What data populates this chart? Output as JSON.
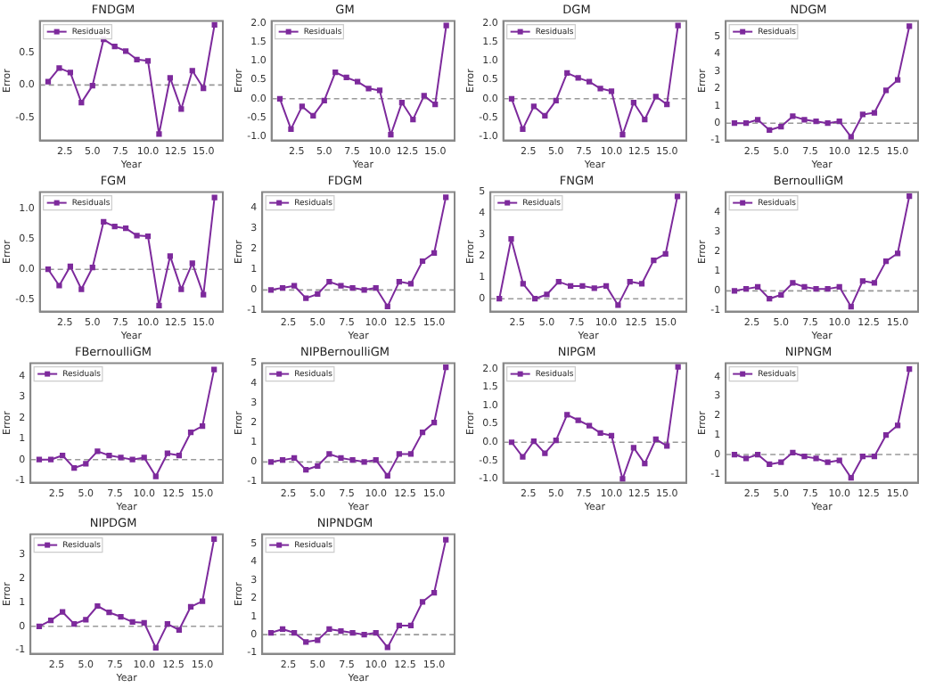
{
  "chart_data": [
    {
      "type": "line",
      "title": "FNDGM",
      "xlabel": "Year",
      "ylabel": "Error",
      "x": [
        1,
        2,
        3,
        4,
        5,
        6,
        7,
        8,
        9,
        10,
        11,
        12,
        13,
        14,
        15,
        16
      ],
      "series": [
        {
          "name": "Residuals",
          "color": "#7d2a9c",
          "values": [
            0.05,
            0.26,
            0.19,
            -0.27,
            -0.01,
            0.7,
            0.59,
            0.52,
            0.39,
            0.37,
            -0.75,
            0.11,
            -0.37,
            0.22,
            -0.05,
            0.92
          ]
        }
      ],
      "xlim": [
        0.25,
        16.75
      ],
      "xticks": [
        2.5,
        {
          "value": 5,
          "label": "5.0"
        },
        7.5,
        {
          "value": 10,
          "label": "10.0"
        },
        12.5,
        {
          "value": 15,
          "label": "15.0"
        }
      ],
      "ylim": [
        -0.85,
        0.98
      ],
      "yticks": [
        -0.5,
        {
          "value": 0,
          "label": "0.0"
        },
        0.5
      ],
      "marker": "square",
      "legend": "top left",
      "ref_lines": [
        {
          "axis": "y",
          "value": 0,
          "color": "#999999",
          "line_style": "dashed"
        }
      ]
    },
    {
      "type": "line",
      "title": "GM",
      "xlabel": "Year",
      "ylabel": "Error",
      "x": [
        1,
        2,
        3,
        4,
        5,
        6,
        7,
        8,
        9,
        10,
        11,
        12,
        13,
        14,
        15,
        16
      ],
      "series": [
        {
          "name": "Residuals",
          "color": "#7d2a9c",
          "values": [
            0,
            -0.8,
            -0.2,
            -0.45,
            -0.05,
            0.7,
            0.56,
            0.45,
            0.27,
            0.22,
            -0.95,
            -0.1,
            -0.55,
            0.08,
            -0.15,
            1.93
          ]
        }
      ],
      "xlim": [
        0.25,
        16.75
      ],
      "xticks": [
        2.5,
        {
          "value": 5,
          "label": "5.0"
        },
        7.5,
        {
          "value": 10,
          "label": "10.0"
        },
        12.5,
        {
          "value": 15,
          "label": "15.0"
        }
      ],
      "ylim": [
        -1.1,
        2.05
      ],
      "yticks": [
        {
          "value": -1,
          "label": "-1.0"
        },
        -0.5,
        {
          "value": 0,
          "label": "0.0"
        },
        0.5,
        {
          "value": 1,
          "label": "1.0"
        },
        1.5,
        {
          "value": 2,
          "label": "2.0"
        }
      ],
      "marker": "square",
      "legend": "top left",
      "ref_lines": [
        {
          "axis": "y",
          "value": 0,
          "color": "#999999",
          "line_style": "dashed"
        }
      ]
    },
    {
      "type": "line",
      "title": "DGM",
      "xlabel": "Year",
      "ylabel": "Error",
      "x": [
        1,
        2,
        3,
        4,
        5,
        6,
        7,
        8,
        9,
        10,
        11,
        12,
        13,
        14,
        15,
        16
      ],
      "series": [
        {
          "name": "Residuals",
          "color": "#7d2a9c",
          "values": [
            0,
            -0.8,
            -0.2,
            -0.45,
            -0.05,
            0.68,
            0.55,
            0.45,
            0.27,
            0.2,
            -0.95,
            -0.1,
            -0.55,
            0.06,
            -0.15,
            1.93
          ]
        }
      ],
      "xlim": [
        0.25,
        16.75
      ],
      "xticks": [
        2.5,
        {
          "value": 5,
          "label": "5.0"
        },
        7.5,
        {
          "value": 10,
          "label": "10.0"
        },
        12.5,
        {
          "value": 15,
          "label": "15.0"
        }
      ],
      "ylim": [
        -1.1,
        2.05
      ],
      "yticks": [
        {
          "value": -1,
          "label": "-1.0"
        },
        -0.5,
        {
          "value": 0,
          "label": "0.0"
        },
        0.5,
        {
          "value": 1,
          "label": "1.0"
        },
        1.5,
        {
          "value": 2,
          "label": "2.0"
        }
      ],
      "marker": "square",
      "legend": "top left",
      "ref_lines": [
        {
          "axis": "y",
          "value": 0,
          "color": "#999999",
          "line_style": "dashed"
        }
      ]
    },
    {
      "type": "line",
      "title": "NDGM",
      "xlabel": "Year",
      "ylabel": "Error",
      "x": [
        1,
        2,
        3,
        4,
        5,
        6,
        7,
        8,
        9,
        10,
        11,
        12,
        13,
        14,
        15,
        16
      ],
      "series": [
        {
          "name": "Residuals",
          "color": "#7d2a9c",
          "values": [
            0,
            0,
            0.2,
            -0.4,
            -0.2,
            0.4,
            0.2,
            0.1,
            0,
            0.1,
            -0.8,
            0.5,
            0.6,
            1.9,
            2.5,
            5.6
          ]
        }
      ],
      "xlim": [
        0.25,
        16.75
      ],
      "xticks": [
        2.5,
        {
          "value": 5,
          "label": "5.0"
        },
        7.5,
        {
          "value": 10,
          "label": "10.0"
        },
        12.5,
        {
          "value": 15,
          "label": "15.0"
        }
      ],
      "ylim": [
        -1,
        5.9
      ],
      "yticks": [
        -1,
        0,
        1,
        2,
        3,
        4,
        5
      ],
      "marker": "square",
      "legend": "top left",
      "ref_lines": [
        {
          "axis": "y",
          "value": 0,
          "color": "#999999",
          "line_style": "dashed"
        }
      ]
    },
    {
      "type": "line",
      "title": "FGM",
      "xlabel": "Year",
      "ylabel": "Error",
      "x": [
        1,
        2,
        3,
        4,
        5,
        6,
        7,
        8,
        9,
        10,
        11,
        12,
        13,
        14,
        15,
        16
      ],
      "series": [
        {
          "name": "Residuals",
          "color": "#7d2a9c",
          "values": [
            0,
            -0.27,
            0.05,
            -0.33,
            0.03,
            0.79,
            0.71,
            0.68,
            0.56,
            0.55,
            -0.6,
            0.22,
            -0.33,
            0.1,
            -0.42,
            1.19
          ]
        }
      ],
      "xlim": [
        0.25,
        16.75
      ],
      "xticks": [
        2.5,
        {
          "value": 5,
          "label": "5.0"
        },
        7.5,
        {
          "value": 10,
          "label": "10.0"
        },
        12.5,
        {
          "value": 15,
          "label": "15.0"
        }
      ],
      "ylim": [
        -0.7,
        1.28
      ],
      "yticks": [
        -0.5,
        {
          "value": 0,
          "label": "0.0"
        },
        0.5,
        {
          "value": 1,
          "label": "1.0"
        }
      ],
      "marker": "square",
      "legend": "top left",
      "ref_lines": [
        {
          "axis": "y",
          "value": 0,
          "color": "#999999",
          "line_style": "dashed"
        }
      ]
    },
    {
      "type": "line",
      "title": "FDGM",
      "xlabel": "Year",
      "ylabel": "Error",
      "x": [
        1,
        2,
        3,
        4,
        5,
        6,
        7,
        8,
        9,
        10,
        11,
        12,
        13,
        14,
        15,
        16
      ],
      "series": [
        {
          "name": "Residuals",
          "color": "#7d2a9c",
          "values": [
            0,
            0.1,
            0.2,
            -0.4,
            -0.2,
            0.4,
            0.2,
            0.1,
            0,
            0.1,
            -0.8,
            0.4,
            0.3,
            1.4,
            1.8,
            4.5
          ]
        }
      ],
      "xlim": [
        0.25,
        16.75
      ],
      "xticks": [
        2.5,
        {
          "value": 5,
          "label": "5.0"
        },
        7.5,
        {
          "value": 10,
          "label": "10.0"
        },
        12.5,
        {
          "value": 15,
          "label": "15.0"
        }
      ],
      "ylim": [
        -1.05,
        4.75
      ],
      "yticks": [
        -1,
        0,
        1,
        2,
        3,
        4
      ],
      "marker": "square",
      "legend": "top left",
      "ref_lines": [
        {
          "axis": "y",
          "value": 0,
          "color": "#999999",
          "line_style": "dashed"
        }
      ]
    },
    {
      "type": "line",
      "title": "FNGM",
      "xlabel": "Year",
      "ylabel": "Error",
      "x": [
        1,
        2,
        3,
        4,
        5,
        6,
        7,
        8,
        9,
        10,
        11,
        12,
        13,
        14,
        15,
        16
      ],
      "series": [
        {
          "name": "Residuals",
          "color": "#7d2a9c",
          "values": [
            0,
            2.8,
            0.7,
            0,
            0.2,
            0.8,
            0.6,
            0.6,
            0.5,
            0.6,
            -0.3,
            0.8,
            0.7,
            1.8,
            2.1,
            4.8
          ]
        }
      ],
      "xlim": [
        0.25,
        16.75
      ],
      "xticks": [
        2.5,
        {
          "value": 5,
          "label": "5.0"
        },
        7.5,
        {
          "value": 10,
          "label": "10.0"
        },
        12.5,
        {
          "value": 15,
          "label": "15.0"
        }
      ],
      "ylim": [
        -0.6,
        5
      ],
      "yticks": [
        0,
        1,
        2,
        3,
        4,
        5
      ],
      "marker": "square",
      "legend": "top left",
      "ref_lines": [
        {
          "axis": "y",
          "value": 0,
          "color": "#999999",
          "line_style": "dashed"
        }
      ]
    },
    {
      "type": "line",
      "title": "BernoulliGM",
      "xlabel": "Year",
      "ylabel": "Error",
      "x": [
        1,
        2,
        3,
        4,
        5,
        6,
        7,
        8,
        9,
        10,
        11,
        12,
        13,
        14,
        15,
        16
      ],
      "series": [
        {
          "name": "Residuals",
          "color": "#7d2a9c",
          "values": [
            0,
            0.1,
            0.2,
            -0.4,
            -0.2,
            0.4,
            0.2,
            0.1,
            0.1,
            0.2,
            -0.8,
            0.5,
            0.4,
            1.5,
            1.9,
            4.8
          ]
        }
      ],
      "xlim": [
        0.25,
        16.75
      ],
      "xticks": [
        2.5,
        {
          "value": 5,
          "label": "5.0"
        },
        7.5,
        {
          "value": 10,
          "label": "10.0"
        },
        12.5,
        {
          "value": 15,
          "label": "15.0"
        }
      ],
      "ylim": [
        -1.05,
        5
      ],
      "yticks": [
        -1,
        0,
        1,
        2,
        3,
        4
      ],
      "marker": "square",
      "legend": "top left",
      "ref_lines": [
        {
          "axis": "y",
          "value": 0,
          "color": "#999999",
          "line_style": "dashed"
        }
      ]
    },
    {
      "type": "line",
      "title": "FBernoulliGM",
      "xlabel": "Year",
      "ylabel": "Error",
      "x": [
        1,
        2,
        3,
        4,
        5,
        6,
        7,
        8,
        9,
        10,
        11,
        12,
        13,
        14,
        15,
        16
      ],
      "series": [
        {
          "name": "Residuals",
          "color": "#7d2a9c",
          "values": [
            0,
            0,
            0.2,
            -0.4,
            -0.2,
            0.4,
            0.2,
            0.1,
            0,
            0.1,
            -0.8,
            0.3,
            0.2,
            1.3,
            1.6,
            4.3
          ]
        }
      ],
      "xlim": [
        0.25,
        16.75
      ],
      "xticks": [
        2.5,
        {
          "value": 5,
          "label": "5.0"
        },
        7.5,
        {
          "value": 10,
          "label": "10.0"
        },
        12.5,
        {
          "value": 15,
          "label": "15.0"
        }
      ],
      "ylim": [
        -1.1,
        4.6
      ],
      "yticks": [
        -1,
        0,
        1,
        2,
        3,
        4
      ],
      "marker": "square",
      "legend": "top left",
      "ref_lines": [
        {
          "axis": "y",
          "value": 0,
          "color": "#999999",
          "line_style": "dashed"
        }
      ]
    },
    {
      "type": "line",
      "title": "NIPBernoulliGM",
      "xlabel": "Year",
      "ylabel": "Error",
      "x": [
        1,
        2,
        3,
        4,
        5,
        6,
        7,
        8,
        9,
        10,
        11,
        12,
        13,
        14,
        15,
        16
      ],
      "series": [
        {
          "name": "Residuals",
          "color": "#7d2a9c",
          "values": [
            0,
            0.1,
            0.2,
            -0.4,
            -0.2,
            0.4,
            0.2,
            0.1,
            0,
            0.1,
            -0.7,
            0.4,
            0.4,
            1.5,
            2,
            4.8
          ]
        }
      ],
      "xlim": [
        0.25,
        16.75
      ],
      "xticks": [
        2.5,
        {
          "value": 5,
          "label": "5.0"
        },
        7.5,
        {
          "value": 10,
          "label": "10.0"
        },
        12.5,
        {
          "value": 15,
          "label": "15.0"
        }
      ],
      "ylim": [
        -1.05,
        5
      ],
      "yticks": [
        -1,
        0,
        1,
        2,
        3,
        4,
        5
      ],
      "marker": "square",
      "legend": "top left",
      "ref_lines": [
        {
          "axis": "y",
          "value": 0,
          "color": "#999999",
          "line_style": "dashed"
        }
      ]
    },
    {
      "type": "line",
      "title": "NIPGM",
      "xlabel": "Year",
      "ylabel": "Error",
      "x": [
        1,
        2,
        3,
        4,
        5,
        6,
        7,
        8,
        9,
        10,
        11,
        12,
        13,
        14,
        15,
        16
      ],
      "series": [
        {
          "name": "Residuals",
          "color": "#7d2a9c",
          "values": [
            0,
            -0.4,
            0.03,
            -0.3,
            0.05,
            0.75,
            0.6,
            0.45,
            0.25,
            0.18,
            -1.0,
            -0.15,
            -0.58,
            0.08,
            -0.1,
            2.05
          ]
        }
      ],
      "xlim": [
        0.25,
        16.75
      ],
      "xticks": [
        2.5,
        {
          "value": 5,
          "label": "5.0"
        },
        7.5,
        {
          "value": 10,
          "label": "10.0"
        },
        12.5,
        {
          "value": 15,
          "label": "15.0"
        }
      ],
      "ylim": [
        -1.1,
        2.15
      ],
      "yticks": [
        {
          "value": -1,
          "label": "-1.0"
        },
        -0.5,
        {
          "value": 0,
          "label": "0.0"
        },
        0.5,
        {
          "value": 1,
          "label": "1.0"
        },
        1.5,
        {
          "value": 2,
          "label": "2.0"
        }
      ],
      "marker": "square",
      "legend": "top left",
      "ref_lines": [
        {
          "axis": "y",
          "value": 0,
          "color": "#999999",
          "line_style": "dashed"
        }
      ]
    },
    {
      "type": "line",
      "title": "NIPNGM",
      "xlabel": "Year",
      "ylabel": "Error",
      "x": [
        1,
        2,
        3,
        4,
        5,
        6,
        7,
        8,
        9,
        10,
        11,
        12,
        13,
        14,
        15,
        16
      ],
      "series": [
        {
          "name": "Residuals",
          "color": "#7d2a9c",
          "values": [
            0,
            -0.2,
            0,
            -0.5,
            -0.4,
            0.1,
            -0.1,
            -0.2,
            -0.4,
            -0.3,
            -1.2,
            -0.1,
            -0.1,
            1,
            1.5,
            4.4
          ]
        }
      ],
      "xlim": [
        0.25,
        16.75
      ],
      "xticks": [
        2.5,
        {
          "value": 5,
          "label": "5.0"
        },
        7.5,
        {
          "value": 10,
          "label": "10.0"
        },
        12.5,
        {
          "value": 15,
          "label": "15.0"
        }
      ],
      "ylim": [
        -1.45,
        4.7
      ],
      "yticks": [
        -1,
        0,
        1,
        2,
        3,
        4
      ],
      "marker": "square",
      "legend": "top left",
      "ref_lines": [
        {
          "axis": "y",
          "value": 0,
          "color": "#999999",
          "line_style": "dashed"
        }
      ]
    },
    {
      "type": "line",
      "title": "NIPDGM",
      "xlabel": "Year",
      "ylabel": "Error",
      "x": [
        1,
        2,
        3,
        4,
        5,
        6,
        7,
        8,
        9,
        10,
        11,
        12,
        13,
        14,
        15,
        16
      ],
      "series": [
        {
          "name": "Residuals",
          "color": "#7d2a9c",
          "values": [
            0,
            0.25,
            0.6,
            0.1,
            0.28,
            0.85,
            0.58,
            0.4,
            0.18,
            0.15,
            -0.9,
            0.1,
            -0.15,
            0.82,
            1.05,
            3.65
          ]
        }
      ],
      "xlim": [
        0.25,
        16.75
      ],
      "xticks": [
        2.5,
        {
          "value": 5,
          "label": "5.0"
        },
        7.5,
        {
          "value": 10,
          "label": "10.0"
        },
        12.5,
        {
          "value": 15,
          "label": "15.0"
        }
      ],
      "ylim": [
        -1.15,
        3.85
      ],
      "yticks": [
        -1,
        0,
        1,
        2,
        3
      ],
      "marker": "square",
      "legend": "top left",
      "ref_lines": [
        {
          "axis": "y",
          "value": 0,
          "color": "#999999",
          "line_style": "dashed"
        }
      ]
    },
    {
      "type": "line",
      "title": "NIPNDGM",
      "xlabel": "Year",
      "ylabel": "Error",
      "x": [
        1,
        2,
        3,
        4,
        5,
        6,
        7,
        8,
        9,
        10,
        11,
        12,
        13,
        14,
        15,
        16
      ],
      "series": [
        {
          "name": "Residuals",
          "color": "#7d2a9c",
          "values": [
            0.1,
            0.3,
            0.1,
            -0.4,
            -0.3,
            0.3,
            0.2,
            0.1,
            0,
            0.1,
            -0.7,
            0.5,
            0.5,
            1.8,
            2.3,
            5.2
          ]
        }
      ],
      "xlim": [
        0.25,
        16.75
      ],
      "xticks": [
        2.5,
        {
          "value": 5,
          "label": "5.0"
        },
        7.5,
        {
          "value": 10,
          "label": "10.0"
        },
        12.5,
        {
          "value": 15,
          "label": "15.0"
        }
      ],
      "ylim": [
        -1.05,
        5.5
      ],
      "yticks": [
        -1,
        0,
        1,
        2,
        3,
        4,
        5
      ],
      "marker": "square",
      "legend": "top left",
      "ref_lines": [
        {
          "axis": "y",
          "value": 0,
          "color": "#999999",
          "line_style": "dashed"
        }
      ]
    }
  ]
}
